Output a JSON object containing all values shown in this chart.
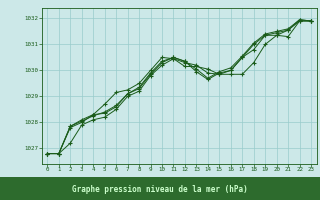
{
  "title": "Graphe pression niveau de la mer (hPa)",
  "bg_color": "#cce8e8",
  "plot_bg_color": "#cce8e8",
  "grid_color": "#99cccc",
  "line_color": "#1a5c1a",
  "bottom_bar_color": "#2d6b2d",
  "title_color": "#ccffcc",
  "xlim": [
    -0.5,
    23.5
  ],
  "ylim": [
    1026.4,
    1032.4
  ],
  "yticks": [
    1027,
    1028,
    1029,
    1030,
    1031,
    1032
  ],
  "xticks": [
    0,
    1,
    2,
    3,
    4,
    5,
    6,
    7,
    8,
    9,
    10,
    11,
    12,
    13,
    14,
    15,
    16,
    17,
    18,
    19,
    20,
    21,
    22,
    23
  ],
  "series": [
    [
      1026.8,
      1026.8,
      1027.2,
      1027.9,
      1028.1,
      1028.2,
      1028.5,
      1029.0,
      1029.2,
      1029.8,
      1030.2,
      1030.45,
      1030.3,
      1030.2,
      1029.9,
      1029.85,
      1029.85,
      1029.85,
      1030.3,
      1031.0,
      1031.35,
      1031.3,
      1031.9,
      1031.9
    ],
    [
      1026.8,
      1026.8,
      1027.8,
      1028.0,
      1028.3,
      1028.7,
      1029.15,
      1029.25,
      1029.5,
      1030.0,
      1030.5,
      1030.45,
      1030.15,
      1030.15,
      1030.05,
      1029.85,
      1030.0,
      1030.5,
      1030.8,
      1031.35,
      1031.35,
      1031.55,
      1031.9,
      1031.9
    ],
    [
      1026.8,
      1026.8,
      1027.85,
      1028.1,
      1028.3,
      1028.35,
      1028.6,
      1029.1,
      1029.3,
      1029.85,
      1030.3,
      1030.5,
      1030.35,
      1029.95,
      1029.65,
      1029.9,
      1030.0,
      1030.5,
      1031.0,
      1031.35,
      1031.45,
      1031.55,
      1031.95,
      1031.9
    ],
    [
      1026.8,
      1026.8,
      1027.85,
      1028.05,
      1028.25,
      1028.4,
      1028.65,
      1029.1,
      1029.35,
      1029.9,
      1030.35,
      1030.5,
      1030.35,
      1030.05,
      1029.7,
      1029.95,
      1030.1,
      1030.55,
      1031.05,
      1031.4,
      1031.5,
      1031.6,
      1031.95,
      1031.9
    ]
  ]
}
